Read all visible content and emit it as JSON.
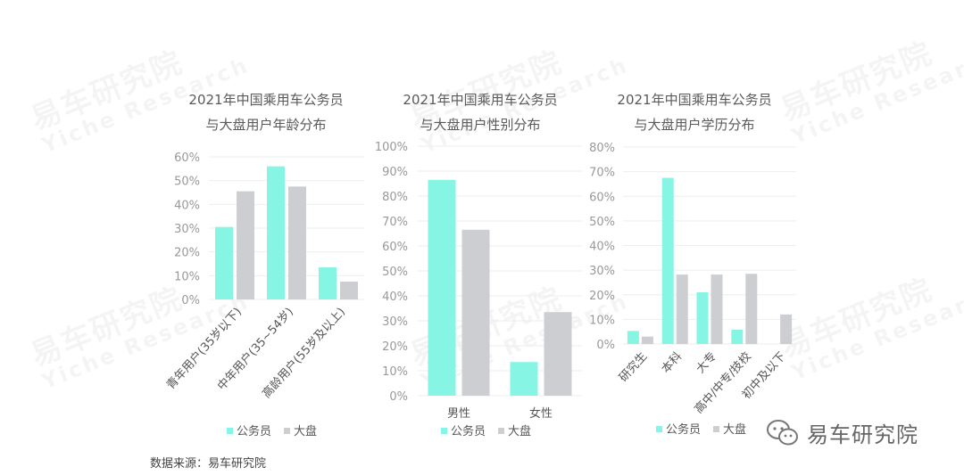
{
  "watermark": {
    "cn": "易车研究院",
    "en": "Yiche Research"
  },
  "colors": {
    "civil": "#86f5e3",
    "market": "#ccced1",
    "grid": "#eeeeee",
    "axis": "#999999"
  },
  "legend": {
    "civil": "公务员",
    "market": "大盘"
  },
  "source": "数据来源：易车研究院",
  "logo": {
    "icon": "wechat-icon",
    "text": "易车研究院"
  },
  "chart_data": [
    {
      "type": "bar",
      "title": [
        "2021年中国乘用车公务员",
        "与大盘用户年龄分布"
      ],
      "categories": [
        "青年用户(35岁以下)",
        "中年用户(35~54岁)",
        "高龄用户(55岁及以上)"
      ],
      "series": [
        {
          "name": "公务员",
          "values": [
            30.5,
            56,
            13.5
          ]
        },
        {
          "name": "大盘",
          "values": [
            45.5,
            47.5,
            7.5
          ]
        }
      ],
      "ylim": [
        0,
        60
      ],
      "ticks": [
        "0%",
        "10%",
        "20%",
        "30%",
        "40%",
        "50%",
        "60%"
      ],
      "legend": "bottom"
    },
    {
      "type": "bar",
      "title": [
        "2021年中国乘用车公务员",
        "与大盘用户性别分布"
      ],
      "categories": [
        "男性",
        "女性"
      ],
      "series": [
        {
          "name": "公务员",
          "values": [
            86.5,
            13.5
          ]
        },
        {
          "name": "大盘",
          "values": [
            66.5,
            33.5
          ]
        }
      ],
      "ylim": [
        0,
        100
      ],
      "ticks": [
        "0%",
        "10%",
        "20%",
        "30%",
        "40%",
        "50%",
        "60%",
        "70%",
        "80%",
        "90%",
        "100%"
      ],
      "legend": "bottom"
    },
    {
      "type": "bar",
      "title": [
        "2021年中国乘用车公务员",
        "与大盘用户学历分布"
      ],
      "categories": [
        "研究生",
        "本科",
        "大专",
        "高中/中专/技校",
        "初中及以下"
      ],
      "series": [
        {
          "name": "公务员",
          "values": [
            5.3,
            67.5,
            21,
            5.8,
            0
          ]
        },
        {
          "name": "大盘",
          "values": [
            3,
            28.2,
            28.2,
            28.5,
            12
          ]
        }
      ],
      "ylim": [
        0,
        80
      ],
      "ticks": [
        "0%",
        "10%",
        "20%",
        "30%",
        "40%",
        "50%",
        "60%",
        "70%",
        "80%"
      ],
      "legend": "bottom"
    }
  ]
}
